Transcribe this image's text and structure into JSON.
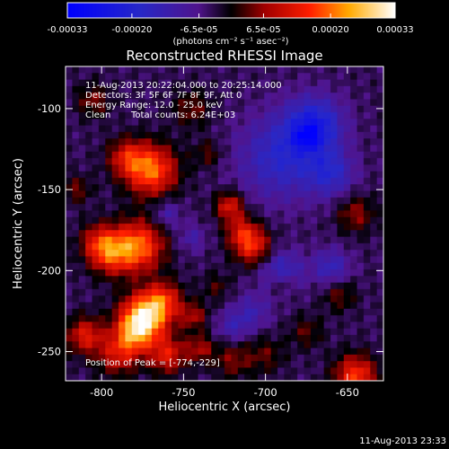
{
  "chart_data": {
    "type": "heatmap",
    "title": "Reconstructed RHESSI Image",
    "xlabel": "Heliocentric X (arcsec)",
    "ylabel": "Heliocentric Y (arcsec)",
    "xlim": [
      -822,
      -628
    ],
    "ylim": [
      -268,
      -74
    ],
    "x_ticks": [
      -800,
      -750,
      -700,
      -650
    ],
    "y_ticks": [
      -100,
      -150,
      -200,
      -250
    ],
    "colorbar": {
      "min": -0.00033,
      "max": 0.00033,
      "ticks": [
        {
          "value": -0.00033,
          "label": "-0.00033"
        },
        {
          "value": -0.0002,
          "label": "-0.00020"
        },
        {
          "value": -6.5e-05,
          "label": "-6.5e-05"
        },
        {
          "value": 6.5e-05,
          "label": "6.5e-05"
        },
        {
          "value": 0.0002,
          "label": "0.00020"
        },
        {
          "value": 0.00033,
          "label": "0.00033"
        }
      ],
      "units_label": "(photons cm⁻² s⁻¹ asec⁻²)"
    },
    "info": {
      "time_range": "11-Aug-2013 20:22:04.000 to 20:25:14.000",
      "detectors": "Detectors: 3F 5F 6F 7F 8F 9F, Att 0",
      "energy": "Energy Range: 12.0 - 25.0 keV",
      "algorithm": "Clean",
      "counts": "Total counts: 6.24E+03",
      "peak": "Position of Peak = [-774,-229]"
    },
    "sources": [
      {
        "x": -774,
        "y": -229,
        "amp": 0.00033,
        "sigma": 10
      },
      {
        "x": -762,
        "y": -218,
        "amp": 0.00016,
        "sigma": 8
      },
      {
        "x": -781,
        "y": -240,
        "amp": 0.00015,
        "sigma": 8
      },
      {
        "x": -770,
        "y": -138,
        "amp": 0.00024,
        "sigma": 11
      },
      {
        "x": -785,
        "y": -130,
        "amp": 0.00013,
        "sigma": 8
      },
      {
        "x": -778,
        "y": -185,
        "amp": 0.00024,
        "sigma": 11
      },
      {
        "x": -795,
        "y": -190,
        "amp": 0.00016,
        "sigma": 9
      },
      {
        "x": -802,
        "y": -182,
        "amp": 0.00012,
        "sigma": 8
      },
      {
        "x": -810,
        "y": -240,
        "amp": 0.00016,
        "sigma": 8
      },
      {
        "x": -790,
        "y": -252,
        "amp": 0.00014,
        "sigma": 9
      },
      {
        "x": -760,
        "y": -252,
        "amp": 0.00016,
        "sigma": 8
      },
      {
        "x": -722,
        "y": -160,
        "amp": 0.00016,
        "sigma": 6
      },
      {
        "x": -708,
        "y": -185,
        "amp": 0.00018,
        "sigma": 8
      },
      {
        "x": -715,
        "y": -175,
        "amp": 0.00012,
        "sigma": 7
      },
      {
        "x": -744,
        "y": -228,
        "amp": 0.00011,
        "sigma": 6
      },
      {
        "x": -740,
        "y": -248,
        "amp": 0.00011,
        "sigma": 6
      },
      {
        "x": -720,
        "y": -255,
        "amp": 9e-05,
        "sigma": 8
      },
      {
        "x": -700,
        "y": -252,
        "amp": 7e-05,
        "sigma": 8
      },
      {
        "x": -675,
        "y": -238,
        "amp": 7e-05,
        "sigma": 7
      },
      {
        "x": -655,
        "y": -215,
        "amp": 8e-05,
        "sigma": 7
      },
      {
        "x": -645,
        "y": -265,
        "amp": 0.0002,
        "sigma": 9
      },
      {
        "x": -645,
        "y": -165,
        "amp": 0.0001,
        "sigma": 8
      },
      {
        "x": -805,
        "y": -95,
        "amp": 9e-05,
        "sigma": 7
      },
      {
        "x": -745,
        "y": -100,
        "amp": 8e-05,
        "sigma": 8
      },
      {
        "x": -815,
        "y": -150,
        "amp": 8e-05,
        "sigma": 6
      },
      {
        "x": -735,
        "y": -128,
        "amp": 7e-05,
        "sigma": 6
      },
      {
        "x": -690,
        "y": -208,
        "amp": 7e-05,
        "sigma": 5
      },
      {
        "x": -730,
        "y": -210,
        "amp": 6e-05,
        "sigma": 6
      },
      {
        "x": -690,
        "y": -130,
        "amp": -0.00014,
        "sigma": 18
      },
      {
        "x": -670,
        "y": -110,
        "amp": -0.00018,
        "sigma": 12
      },
      {
        "x": -675,
        "y": -118,
        "amp": -0.0001,
        "sigma": 5
      },
      {
        "x": -660,
        "y": -140,
        "amp": -0.00012,
        "sigma": 10
      },
      {
        "x": -690,
        "y": -200,
        "amp": -0.00012,
        "sigma": 9
      },
      {
        "x": -660,
        "y": -198,
        "amp": -0.00011,
        "sigma": 8
      },
      {
        "x": -708,
        "y": -225,
        "amp": -8e-05,
        "sigma": 8
      },
      {
        "x": -760,
        "y": -165,
        "amp": -8e-05,
        "sigma": 6
      },
      {
        "x": -745,
        "y": -180,
        "amp": -7e-05,
        "sigma": 6
      },
      {
        "x": -720,
        "y": -235,
        "amp": -8e-05,
        "sigma": 7
      }
    ]
  },
  "footer": {
    "timestamp": "11-Aug-2013 23:33"
  }
}
